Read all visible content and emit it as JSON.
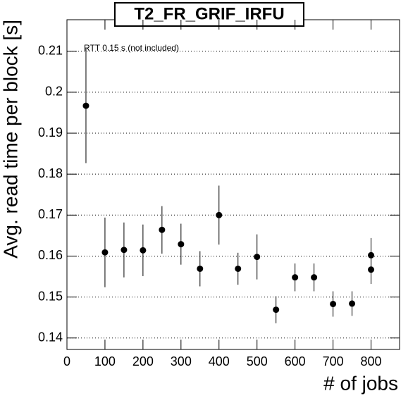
{
  "chart_data": {
    "type": "errorbar",
    "title": "T2_FR_GRIF_IRFU",
    "annotation": "RTT 0.15 s (not included)",
    "xlabel": "# of jobs",
    "ylabel": "Avg. read time per block [s]",
    "x": [
      50,
      100,
      150,
      200,
      250,
      300,
      350,
      400,
      450,
      500,
      550,
      600,
      650,
      700,
      750,
      800,
      800
    ],
    "values": [
      0.1967,
      0.1609,
      0.1615,
      0.1614,
      0.1664,
      0.1629,
      0.1569,
      0.17,
      0.1569,
      0.1598,
      0.1469,
      0.1548,
      0.1548,
      0.1483,
      0.1484,
      0.1602,
      0.1567
    ],
    "errors": [
      0.014,
      0.0085,
      0.0067,
      0.0063,
      0.0058,
      0.005,
      0.0043,
      0.0072,
      0.0039,
      0.0055,
      0.0033,
      0.0034,
      0.0034,
      0.0031,
      0.003,
      0.0042,
      0.0035
    ],
    "color": "#000000",
    "xlim": [
      0,
      875
    ],
    "ylim": [
      0.1372,
      0.2177
    ],
    "xticks": [
      0,
      100,
      200,
      300,
      400,
      500,
      600,
      700,
      800
    ],
    "yticks": [
      0.14,
      0.15,
      0.16,
      0.17,
      0.18,
      0.19,
      0.2,
      0.21
    ],
    "grid": true
  }
}
